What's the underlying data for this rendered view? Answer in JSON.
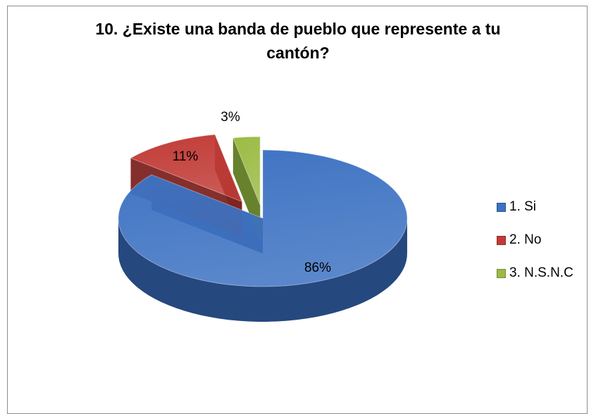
{
  "chart_data": {
    "type": "pie",
    "title_line1": "10. ¿Existe una banda de pueblo que represente a tu",
    "title_line2": "cantón?",
    "slices": [
      {
        "label": "1. Si",
        "value": 86,
        "display": "86%",
        "color": "#3d72c2",
        "dark": "#25487e"
      },
      {
        "label": "2. No",
        "value": 11,
        "display": "11%",
        "color": "#c13b36",
        "dark": "#7d2421"
      },
      {
        "label": "3. N.S.N.C",
        "value": 3,
        "display": "3%",
        "color": "#9bbb44",
        "dark": "#5f7a22"
      }
    ],
    "legend_position": "right",
    "style": "3d-exploded"
  }
}
